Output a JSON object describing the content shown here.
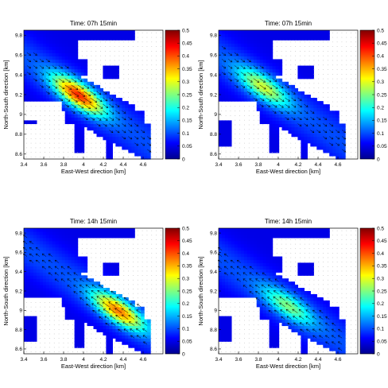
{
  "chart_data": [
    {
      "type": "heatmap",
      "title": "Time: 07h 15min",
      "xlabel": "East-West direction [km]",
      "ylabel": "North-South direction [km]",
      "xlim": [
        3.4,
        4.8
      ],
      "ylim": [
        8.55,
        9.85
      ],
      "x_ticks": [
        "3.4",
        "3.6",
        "3.8",
        "4",
        "4.2",
        "4.4",
        "4.6"
      ],
      "y_ticks": [
        "8.6",
        "8.8",
        "9",
        "9.2",
        "9.4",
        "9.6",
        "9.8"
      ],
      "colorbar_ticks": [
        "0",
        "0.05",
        "0.1",
        "0.15",
        "0.2",
        "0.25",
        "0.3",
        "0.35",
        "0.4",
        "0.45",
        "0.5"
      ],
      "colorbar_range": [
        0,
        0.5
      ],
      "peak_value": 0.37,
      "peak_location": [
        3.95,
        9.2
      ],
      "grid": false
    },
    {
      "type": "heatmap",
      "title": "Time: 07h 15min",
      "xlabel": "East-West direction [km]",
      "ylabel": "North-South direction [km]",
      "xlim": [
        3.4,
        4.8
      ],
      "ylim": [
        8.55,
        9.85
      ],
      "x_ticks": [
        "3.4",
        "3.6",
        "3.8",
        "4",
        "4.2",
        "4.4",
        "4.6"
      ],
      "y_ticks": [
        "8.6",
        "8.8",
        "9",
        "9.2",
        "9.4",
        "9.6",
        "9.8"
      ],
      "colorbar_ticks": [
        "0",
        "0.05",
        "0.1",
        "0.15",
        "0.2",
        "0.25",
        "0.3",
        "0.35",
        "0.4",
        "0.45",
        "0.5"
      ],
      "colorbar_range": [
        0,
        0.5
      ],
      "peak_value": 0.24,
      "peak_location": [
        3.85,
        9.28
      ],
      "grid": false
    },
    {
      "type": "heatmap",
      "title": "Time: 14h 15min",
      "xlabel": "East-West direction [km]",
      "ylabel": "North-South direction [km]",
      "xlim": [
        3.4,
        4.8
      ],
      "ylim": [
        8.55,
        9.85
      ],
      "x_ticks": [
        "3.4",
        "3.6",
        "3.8",
        "4",
        "4.2",
        "4.4",
        "4.6"
      ],
      "y_ticks": [
        "8.6",
        "8.8",
        "9",
        "9.2",
        "9.4",
        "9.6",
        "9.8"
      ],
      "colorbar_ticks": [
        "0",
        "0.05",
        "0.1",
        "0.15",
        "0.2",
        "0.25",
        "0.3",
        "0.35",
        "0.4",
        "0.45",
        "0.5"
      ],
      "colorbar_range": [
        0,
        0.5
      ],
      "peak_value": 0.33,
      "peak_location": [
        4.35,
        9.0
      ],
      "grid": false
    },
    {
      "type": "heatmap",
      "title": "Time: 14h 15min",
      "xlabel": "East-West direction [km]",
      "ylabel": "North-South direction [km]",
      "xlim": [
        3.4,
        4.8
      ],
      "ylim": [
        8.55,
        9.85
      ],
      "x_ticks": [
        "3.4",
        "3.6",
        "3.8",
        "4",
        "4.2",
        "4.4",
        "4.6"
      ],
      "y_ticks": [
        "8.6",
        "8.8",
        "9",
        "9.2",
        "9.4",
        "9.6",
        "9.8"
      ],
      "colorbar_ticks": [
        "0",
        "0.05",
        "0.1",
        "0.15",
        "0.2",
        "0.25",
        "0.3",
        "0.35",
        "0.4",
        "0.45",
        "0.5"
      ],
      "colorbar_range": [
        0,
        0.5
      ],
      "peak_value": 0.2,
      "peak_location": [
        4.1,
        9.05
      ],
      "grid": false
    }
  ],
  "colors": {
    "land": "#ffffff",
    "background_water": "#1531c4",
    "arrows": "#000000"
  }
}
